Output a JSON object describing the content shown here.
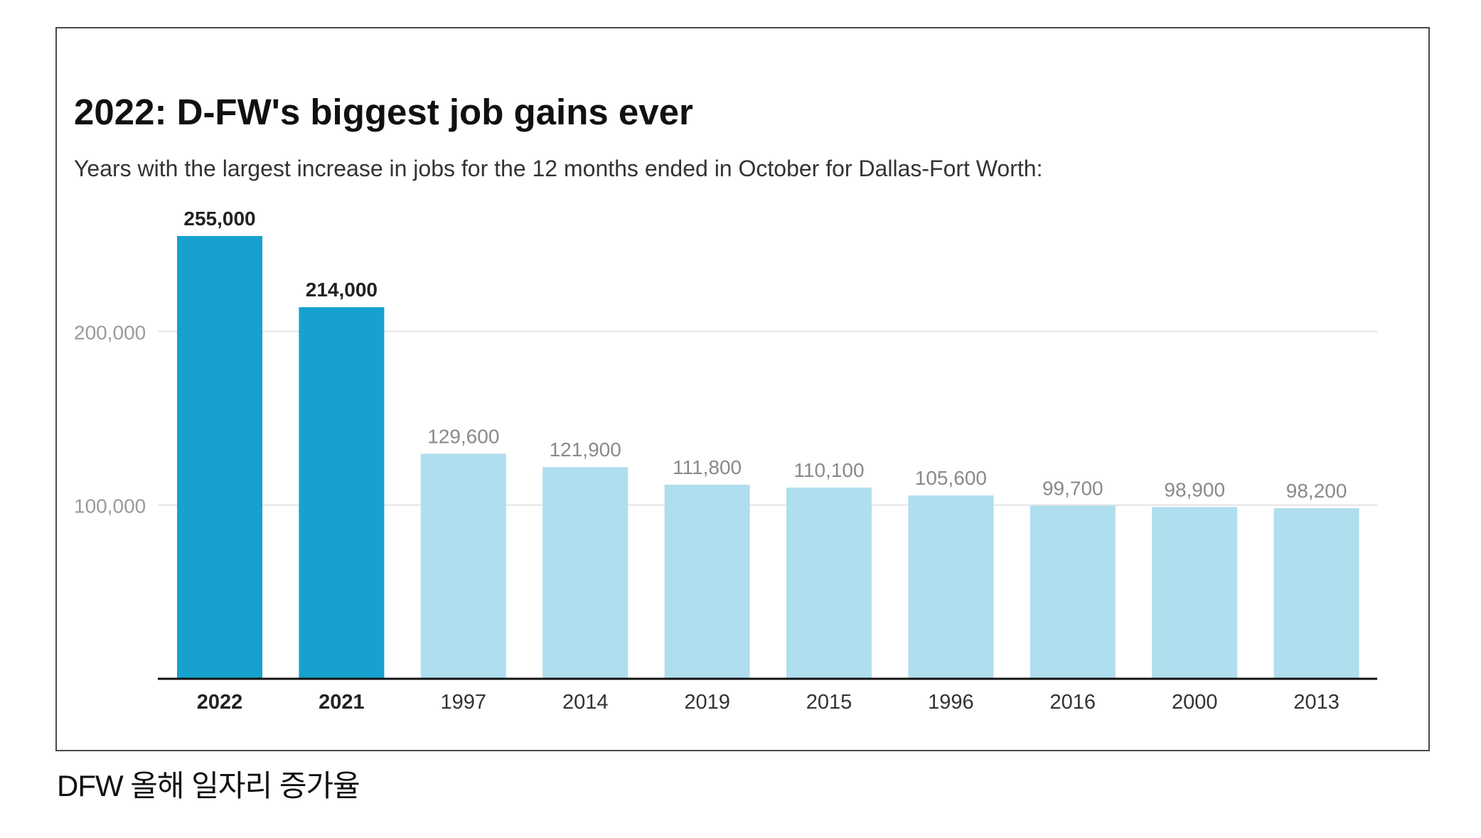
{
  "title": "2022: D-FW's biggest job gains ever",
  "subtitle": "Years with the largest increase in jobs for the 12 months ended in October for Dallas-Fort Worth:",
  "caption": "DFW 올해 일자리 증가율",
  "colors": {
    "highlight": "#17a1cf",
    "normal": "#afdeee",
    "gridline": "#e3e3e3",
    "axis": "#111111",
    "label_highlight": "#222222",
    "label_normal": "#8a8a8a",
    "tick_label": "#9a9a9a"
  },
  "chart_data": {
    "type": "bar",
    "categories": [
      "2022",
      "2021",
      "1997",
      "2014",
      "2019",
      "2015",
      "1996",
      "2016",
      "2000",
      "2013"
    ],
    "values": [
      255000,
      214000,
      129600,
      121900,
      111800,
      110100,
      105600,
      99700,
      98900,
      98200
    ],
    "value_labels": [
      "255,000",
      "214,000",
      "129,600",
      "121,900",
      "111,800",
      "110,100",
      "105,600",
      "99,700",
      "98,900",
      "98,200"
    ],
    "highlighted": [
      true,
      true,
      false,
      false,
      false,
      false,
      false,
      false,
      false,
      false
    ],
    "yticks": [
      100000,
      200000
    ],
    "ytick_labels": [
      "100,000",
      "200,000"
    ],
    "ylim": [
      0,
      255000
    ],
    "grid": true,
    "legend": "none"
  }
}
